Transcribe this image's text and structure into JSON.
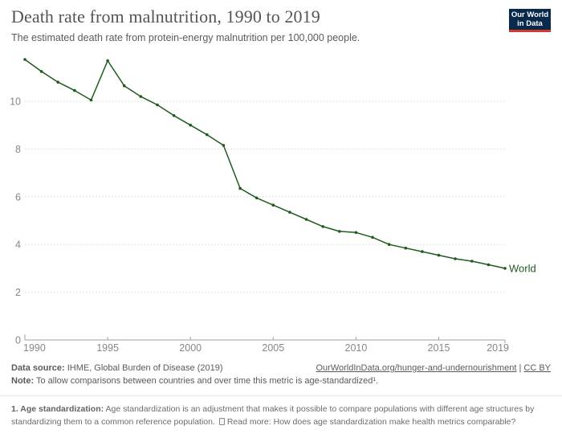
{
  "header": {
    "title": "Death rate from malnutrition, 1990 to 2019",
    "subtitle": "The estimated death rate from protein-energy malnutrition per 100,000 people.",
    "logo_line1": "Our World",
    "logo_line2": "in Data"
  },
  "chart_data": {
    "type": "line",
    "title": "Death rate from malnutrition, 1990 to 2019",
    "x": [
      1990,
      1991,
      1992,
      1993,
      1994,
      1995,
      1996,
      1997,
      1998,
      1999,
      2000,
      2001,
      2002,
      2003,
      2004,
      2005,
      2006,
      2007,
      2008,
      2009,
      2010,
      2011,
      2012,
      2013,
      2014,
      2015,
      2016,
      2017,
      2018,
      2019
    ],
    "series": [
      {
        "name": "World",
        "color": "#1F5B1F",
        "values": [
          11.75,
          11.25,
          10.8,
          10.45,
          10.05,
          11.7,
          10.65,
          10.2,
          9.85,
          9.4,
          9.0,
          8.6,
          8.15,
          6.35,
          5.95,
          5.65,
          5.35,
          5.05,
          4.75,
          4.55,
          4.5,
          4.3,
          4.0,
          3.85,
          3.7,
          3.55,
          3.4,
          3.3,
          3.15,
          3.0
        ]
      }
    ],
    "x_ticks": [
      1990,
      1995,
      2000,
      2005,
      2010,
      2015,
      2019
    ],
    "y_ticks": [
      0,
      2,
      4,
      6,
      8,
      10
    ],
    "xlim": [
      1990,
      2019
    ],
    "ylim": [
      0,
      12.2
    ],
    "grid": "horizontal-dotted",
    "legend": "inline-end-label"
  },
  "colors": {
    "line": "#1F5B1F",
    "tick_label": "#878787",
    "gridline": "#d9d9d9",
    "axis_line": "#a0a0a0",
    "title": "#555555",
    "logo_bg": "#0a2a4d",
    "logo_stripe": "#d23b2a"
  },
  "footer": {
    "source_label": "Data source:",
    "source_value": " IHME, Global Burden of Disease (2019)",
    "link_text": "OurWorldInData.org/hunger-and-undernourishment",
    "separator": " | ",
    "license_text": "CC BY",
    "note_label": "Note:",
    "note_value": " To allow comparisons between countries and over time this metric is age-standardized¹."
  },
  "footnote": {
    "label": "1. Age standardization:",
    "text": " Age standardization is an adjustment that makes it possible to compare populations with different age structures by standardizing them to a common reference population.",
    "readmore_label": "Read more:",
    "readmore_text": " How does age standardization make health metrics comparable?"
  }
}
